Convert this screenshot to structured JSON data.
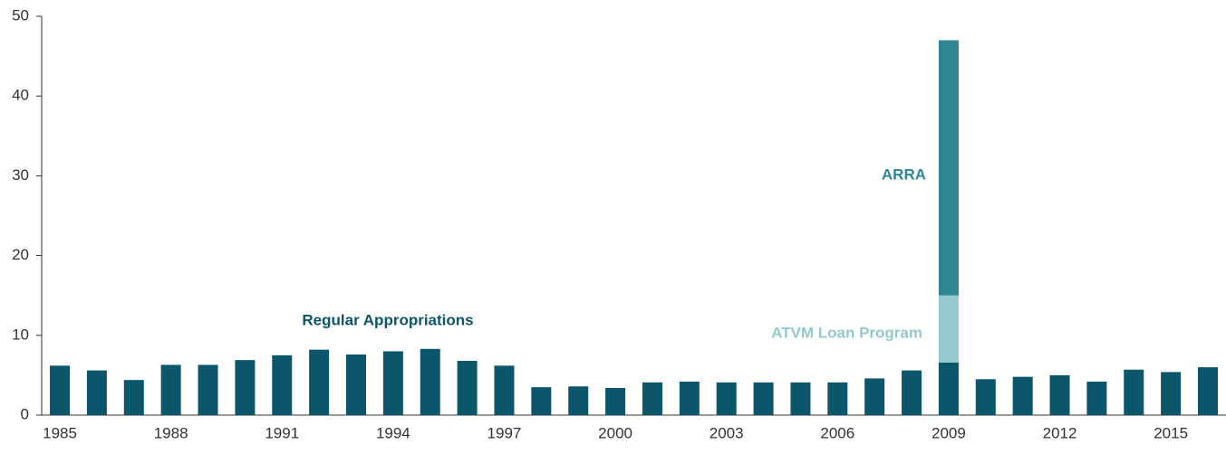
{
  "chart_data": {
    "type": "stacked_bar",
    "categories": [
      "1985",
      null,
      null,
      "1988",
      null,
      null,
      "1991",
      null,
      null,
      "1994",
      null,
      null,
      "1997",
      null,
      null,
      "2000",
      null,
      null,
      "2003",
      null,
      null,
      "2006",
      null,
      null,
      "2009",
      null,
      null,
      "2012",
      null,
      null,
      "2015",
      null
    ],
    "series": [
      {
        "name": "Regular Appropriations",
        "color": "#0b566b",
        "values": [
          6.2,
          5.6,
          4.4,
          6.3,
          6.3,
          6.9,
          7.5,
          8.2,
          7.6,
          8.0,
          8.3,
          6.8,
          6.2,
          3.5,
          3.6,
          3.4,
          4.1,
          4.2,
          4.1,
          4.1,
          4.1,
          4.1,
          4.6,
          5.6,
          6.6,
          4.5,
          4.8,
          5.0,
          4.2,
          5.7,
          5.4,
          6.0
        ]
      },
      {
        "name": "ATVM Loan Program",
        "color": "#93c9cf",
        "values": [
          null,
          null,
          null,
          null,
          null,
          null,
          null,
          null,
          null,
          null,
          null,
          null,
          null,
          null,
          null,
          null,
          null,
          null,
          null,
          null,
          null,
          null,
          null,
          null,
          8.4,
          null,
          null,
          null,
          null,
          null,
          null,
          null
        ]
      },
      {
        "name": "ARRA",
        "color": "#2e8694",
        "values": [
          null,
          null,
          null,
          null,
          null,
          null,
          null,
          null,
          null,
          null,
          null,
          null,
          null,
          null,
          null,
          null,
          null,
          null,
          null,
          null,
          null,
          null,
          null,
          null,
          32.0,
          null,
          null,
          null,
          null,
          null,
          null,
          null
        ]
      }
    ],
    "ylim": [
      0,
      50
    ],
    "yticks": [
      0,
      10,
      20,
      30,
      40,
      50
    ]
  }
}
